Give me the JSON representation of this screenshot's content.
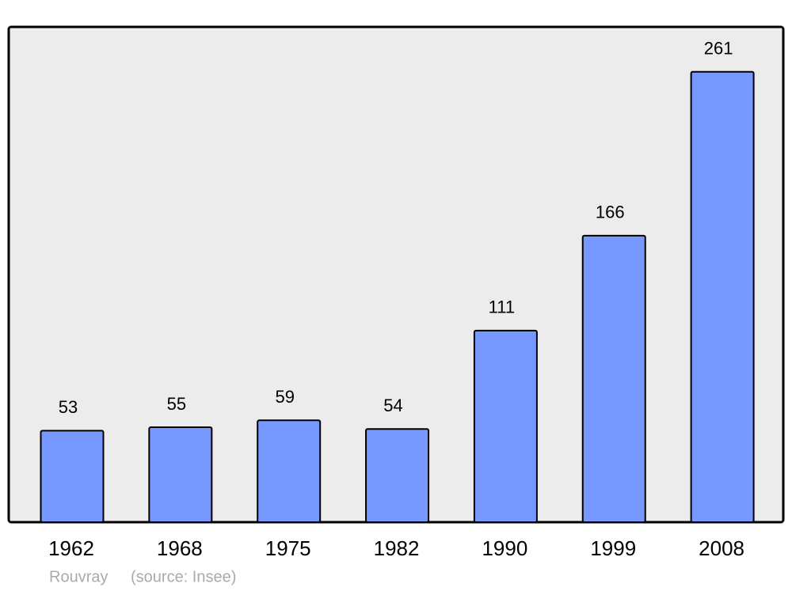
{
  "chart_data": {
    "type": "bar",
    "categories": [
      "1962",
      "1968",
      "1975",
      "1982",
      "1990",
      "1999",
      "2008"
    ],
    "values": [
      53,
      55,
      59,
      54,
      111,
      166,
      261
    ],
    "color": "#7799ff",
    "ylim": [
      0,
      287
    ],
    "place": "Rouvray",
    "source": "(source: Insee)"
  }
}
